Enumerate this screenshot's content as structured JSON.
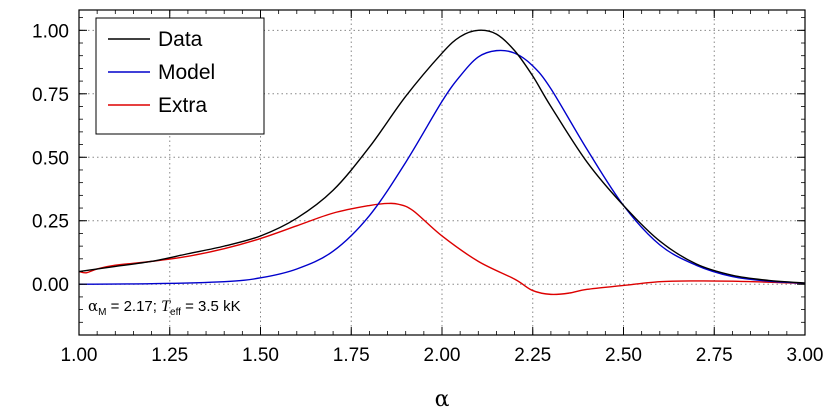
{
  "chart_data": {
    "type": "line",
    "xlabel": "α",
    "ylabel": "",
    "xlim": [
      1.0,
      3.0
    ],
    "ylim": [
      -0.2,
      1.08
    ],
    "grid": true,
    "legend_placement": "top-left",
    "x_ticks": [
      "1.00",
      "1.25",
      "1.50",
      "1.75",
      "2.00",
      "2.25",
      "2.50",
      "2.75",
      "3.00"
    ],
    "y_ticks": [
      "0.00",
      "0.25",
      "0.50",
      "0.75",
      "1.00"
    ],
    "annotation": {
      "alpha_symbol": "α",
      "alpha_sub": "M",
      "alpha_value": " = 2.17; ",
      "teff_symbol": "T",
      "teff_sub": "eff",
      "teff_value": " = 3.5 kK"
    },
    "series": [
      {
        "name": "Data",
        "color": "#000000",
        "x": [
          1.0,
          1.1,
          1.2,
          1.3,
          1.4,
          1.5,
          1.6,
          1.7,
          1.8,
          1.9,
          2.0,
          2.05,
          2.1,
          2.15,
          2.2,
          2.25,
          2.3,
          2.4,
          2.5,
          2.6,
          2.7,
          2.8,
          2.9,
          3.0
        ],
        "y": [
          0.05,
          0.07,
          0.09,
          0.12,
          0.15,
          0.19,
          0.26,
          0.37,
          0.54,
          0.74,
          0.91,
          0.975,
          1.0,
          0.985,
          0.92,
          0.82,
          0.7,
          0.48,
          0.31,
          0.17,
          0.08,
          0.035,
          0.015,
          0.005
        ]
      },
      {
        "name": "Model",
        "color": "#0000cc",
        "x": [
          1.0,
          1.2,
          1.4,
          1.5,
          1.6,
          1.7,
          1.8,
          1.9,
          2.0,
          2.05,
          2.1,
          2.15,
          2.2,
          2.25,
          2.3,
          2.4,
          2.5,
          2.6,
          2.7,
          2.8,
          2.9,
          3.0
        ],
        "y": [
          0.0,
          0.002,
          0.01,
          0.025,
          0.06,
          0.13,
          0.27,
          0.48,
          0.72,
          0.82,
          0.895,
          0.92,
          0.91,
          0.86,
          0.77,
          0.53,
          0.31,
          0.155,
          0.075,
          0.03,
          0.012,
          0.004
        ]
      },
      {
        "name": "Extra",
        "color": "#dd0000",
        "x": [
          1.0,
          1.02,
          1.05,
          1.1,
          1.2,
          1.3,
          1.4,
          1.5,
          1.6,
          1.7,
          1.8,
          1.85,
          1.88,
          1.92,
          2.0,
          2.1,
          2.2,
          2.25,
          2.3,
          2.35,
          2.4,
          2.5,
          2.6,
          2.7,
          2.8,
          2.9,
          3.0
        ],
        "y": [
          0.05,
          0.045,
          0.06,
          0.075,
          0.09,
          0.11,
          0.14,
          0.18,
          0.23,
          0.28,
          0.31,
          0.318,
          0.315,
          0.29,
          0.19,
          0.09,
          0.02,
          -0.025,
          -0.04,
          -0.035,
          -0.02,
          -0.005,
          0.01,
          0.013,
          0.012,
          0.008,
          0.003
        ]
      }
    ]
  }
}
